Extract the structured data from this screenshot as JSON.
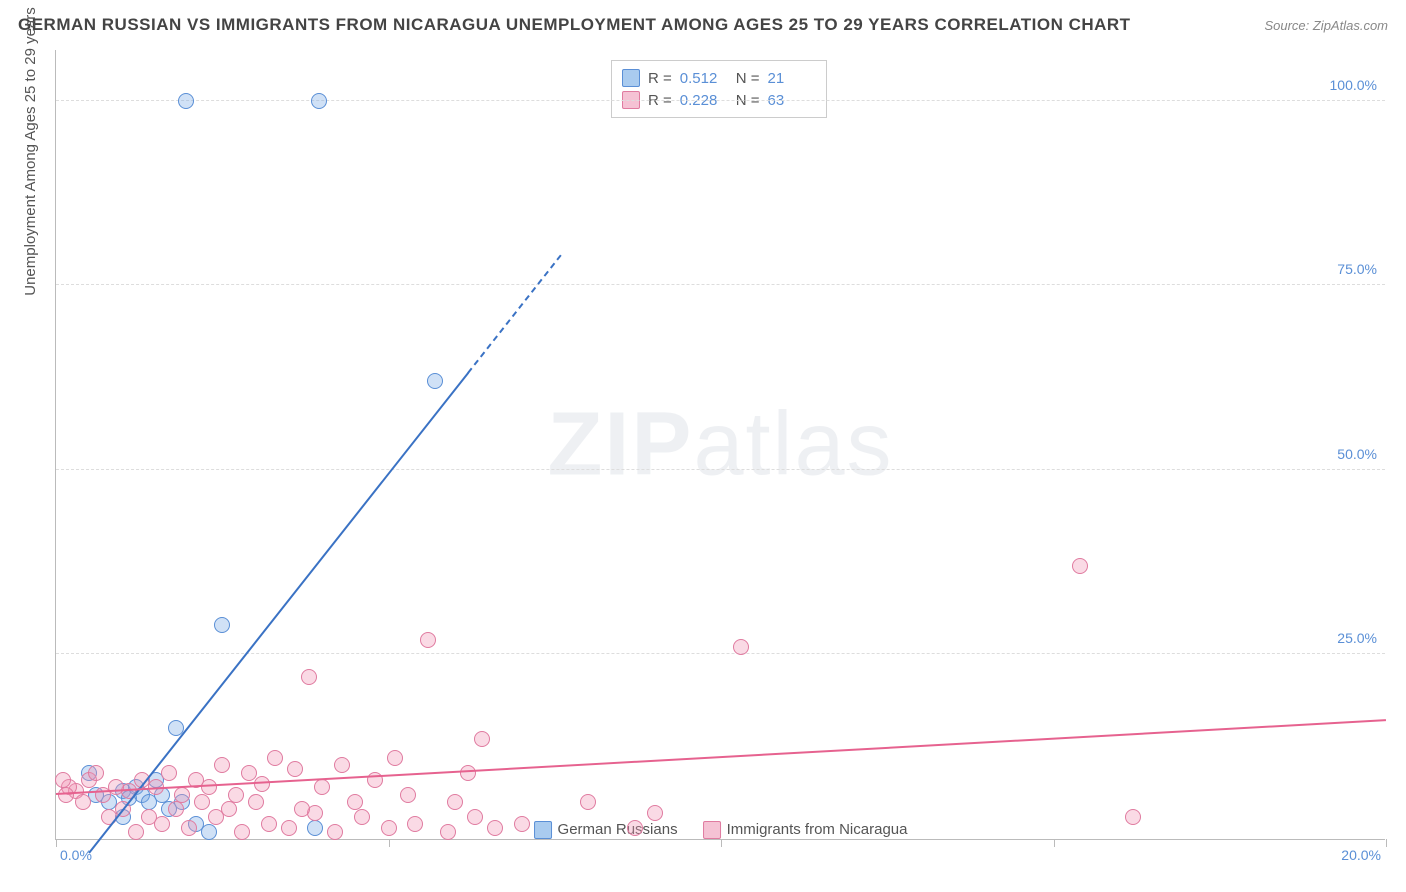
{
  "title": "GERMAN RUSSIAN VS IMMIGRANTS FROM NICARAGUA UNEMPLOYMENT AMONG AGES 25 TO 29 YEARS CORRELATION CHART",
  "source": "Source: ZipAtlas.com",
  "y_axis_label": "Unemployment Among Ages 25 to 29 years",
  "watermark_bold": "ZIP",
  "watermark_rest": "atlas",
  "chart": {
    "type": "scatter",
    "xlim": [
      0,
      20
    ],
    "ylim": [
      0,
      107
    ],
    "x_ticks": [
      0,
      5,
      10,
      15,
      20
    ],
    "x_tick_labels": [
      "0.0%",
      "",
      "",
      "",
      "20.0%"
    ],
    "y_ticks": [
      25,
      50,
      75,
      100
    ],
    "y_tick_labels": [
      "25.0%",
      "50.0%",
      "75.0%",
      "100.0%"
    ],
    "grid_color": "#dddddd",
    "background_color": "#ffffff",
    "series": [
      {
        "name": "German Russians",
        "color_fill": "rgba(120,170,230,0.35)",
        "color_stroke": "#5a8fd6",
        "swatch_fill": "#a9cbef",
        "swatch_stroke": "#5a8fd6",
        "R": "0.512",
        "N": "21",
        "trend": {
          "x1": 0.5,
          "y1": -2,
          "x2": 6.2,
          "y2": 63,
          "dash_to_x": 7.6,
          "dash_to_y": 79,
          "color": "#3a72c4"
        },
        "points": [
          [
            1.95,
            100
          ],
          [
            3.95,
            100
          ],
          [
            5.7,
            62
          ],
          [
            2.5,
            29
          ],
          [
            1.8,
            15
          ],
          [
            0.5,
            9
          ],
          [
            0.6,
            6
          ],
          [
            0.8,
            5
          ],
          [
            1.0,
            6.5
          ],
          [
            1.1,
            5.5
          ],
          [
            1.2,
            7
          ],
          [
            1.3,
            6
          ],
          [
            1.4,
            5
          ],
          [
            1.6,
            6
          ],
          [
            1.7,
            4
          ],
          [
            1.9,
            5
          ],
          [
            2.1,
            2
          ],
          [
            2.3,
            1
          ],
          [
            3.9,
            1.5
          ],
          [
            1.5,
            8
          ],
          [
            1.0,
            3
          ]
        ]
      },
      {
        "name": "Immigrants from Nicaragua",
        "color_fill": "rgba(240,150,180,0.35)",
        "color_stroke": "#e07ba0",
        "swatch_fill": "#f5c2d4",
        "swatch_stroke": "#e07ba0",
        "R": "0.228",
        "N": "63",
        "trend": {
          "x1": 0,
          "y1": 6,
          "x2": 20,
          "y2": 16,
          "color": "#e6628f"
        },
        "points": [
          [
            15.4,
            37
          ],
          [
            10.3,
            26
          ],
          [
            5.6,
            27
          ],
          [
            3.8,
            22
          ],
          [
            6.4,
            13.5
          ],
          [
            6.2,
            9
          ],
          [
            5.1,
            11
          ],
          [
            4.8,
            8
          ],
          [
            4.3,
            10
          ],
          [
            4.0,
            7
          ],
          [
            3.6,
            9.5
          ],
          [
            3.3,
            11
          ],
          [
            3.1,
            7.5
          ],
          [
            2.9,
            9
          ],
          [
            2.7,
            6
          ],
          [
            2.5,
            10
          ],
          [
            2.3,
            7
          ],
          [
            2.1,
            8
          ],
          [
            1.9,
            6
          ],
          [
            1.7,
            9
          ],
          [
            1.5,
            7
          ],
          [
            1.3,
            8
          ],
          [
            1.1,
            6.5
          ],
          [
            0.9,
            7
          ],
          [
            0.7,
            6
          ],
          [
            0.5,
            8
          ],
          [
            0.3,
            6.5
          ],
          [
            0.2,
            7
          ],
          [
            0.15,
            6
          ],
          [
            0.1,
            8
          ],
          [
            0.4,
            5
          ],
          [
            0.6,
            9
          ],
          [
            9.0,
            3.5
          ],
          [
            8.7,
            1.5
          ],
          [
            8.0,
            5
          ],
          [
            7.0,
            2
          ],
          [
            6.6,
            1.5
          ],
          [
            6.3,
            3
          ],
          [
            5.9,
            1
          ],
          [
            5.4,
            2
          ],
          [
            5.0,
            1.5
          ],
          [
            4.6,
            3
          ],
          [
            4.2,
            1
          ],
          [
            3.9,
            3.5
          ],
          [
            3.5,
            1.5
          ],
          [
            3.2,
            2
          ],
          [
            2.8,
            1
          ],
          [
            2.4,
            3
          ],
          [
            2.0,
            1.5
          ],
          [
            1.6,
            2
          ],
          [
            1.2,
            1
          ],
          [
            16.2,
            3
          ],
          [
            6.0,
            5
          ],
          [
            5.3,
            6
          ],
          [
            4.5,
            5
          ],
          [
            3.7,
            4
          ],
          [
            3.0,
            5
          ],
          [
            2.6,
            4
          ],
          [
            2.2,
            5
          ],
          [
            1.8,
            4
          ],
          [
            1.4,
            3
          ],
          [
            1.0,
            4
          ],
          [
            0.8,
            3
          ]
        ]
      }
    ]
  },
  "legend_stats_labels": {
    "R": "R  =",
    "N": "N  ="
  }
}
